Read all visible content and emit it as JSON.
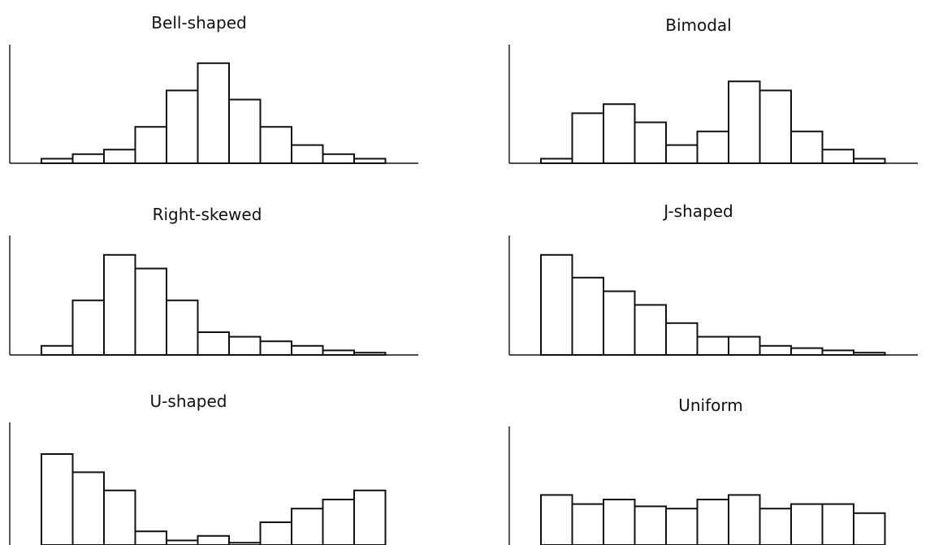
{
  "chart_data": [
    {
      "type": "bar",
      "title": "Bell-shaped",
      "values": [
        1,
        2,
        3,
        8,
        16,
        22,
        14,
        8,
        4,
        2,
        1
      ],
      "ylim": [
        0,
        25
      ],
      "grid": false
    },
    {
      "type": "bar",
      "title": "Bimodal",
      "values": [
        1,
        11,
        13,
        9,
        4,
        7,
        18,
        16,
        7,
        3,
        1
      ],
      "ylim": [
        0,
        25
      ],
      "grid": false
    },
    {
      "type": "bar",
      "title": "Right-skewed",
      "values": [
        2,
        12,
        22,
        19,
        12,
        5,
        4,
        3,
        2,
        1,
        0.5
      ],
      "ylim": [
        0,
        25
      ],
      "grid": false
    },
    {
      "type": "bar",
      "title": "J-shaped",
      "values": [
        22,
        17,
        14,
        11,
        7,
        4,
        4,
        2,
        1.5,
        1,
        0.5
      ],
      "ylim": [
        0,
        25
      ],
      "grid": false
    },
    {
      "type": "bar",
      "title": "U-shaped",
      "values": [
        20,
        16,
        12,
        3,
        1,
        2,
        0.5,
        5,
        8,
        10,
        12
      ],
      "ylim": [
        0,
        25
      ],
      "grid": false
    },
    {
      "type": "bar",
      "title": "Uniform",
      "values": [
        11,
        9,
        10,
        8.5,
        8,
        10,
        11,
        8,
        9,
        9,
        7
      ],
      "ylim": [
        0,
        25
      ],
      "grid": false
    }
  ]
}
